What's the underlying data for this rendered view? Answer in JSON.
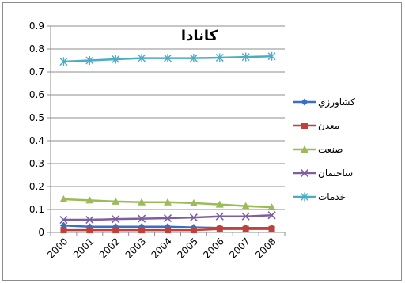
{
  "chart_data": {
    "type": "line",
    "title": "کانادا",
    "categories": [
      "2000",
      "2001",
      "2002",
      "2003",
      "2004",
      "2005",
      "2006",
      "2007",
      "2008"
    ],
    "ylim": [
      0,
      0.9
    ],
    "yticks": [
      "0",
      "0.1",
      "0.2",
      "0.3",
      "0.4",
      "0.5",
      "0.6",
      "0.7",
      "0.8",
      "0.9"
    ],
    "grid": true,
    "legend_position": "right",
    "series": [
      {
        "name": "كشاورزي",
        "color": "#3a6fc4",
        "marker": "diamond",
        "values": [
          0.03,
          0.025,
          0.025,
          0.025,
          0.025,
          0.022,
          0.02,
          0.02,
          0.02
        ]
      },
      {
        "name": "معدن",
        "color": "#c0413b",
        "marker": "square",
        "values": [
          0.01,
          0.01,
          0.01,
          0.01,
          0.01,
          0.01,
          0.015,
          0.015,
          0.015
        ]
      },
      {
        "name": "صنعت",
        "color": "#9bbb59",
        "marker": "triangle",
        "values": [
          0.145,
          0.14,
          0.135,
          0.132,
          0.132,
          0.128,
          0.122,
          0.115,
          0.11
        ]
      },
      {
        "name": "ساختمان",
        "color": "#7d5fa0",
        "marker": "x",
        "values": [
          0.055,
          0.055,
          0.058,
          0.06,
          0.062,
          0.065,
          0.07,
          0.07,
          0.075
        ]
      },
      {
        "name": "خدمات",
        "color": "#4bacc6",
        "marker": "asterisk",
        "values": [
          0.745,
          0.75,
          0.755,
          0.76,
          0.76,
          0.76,
          0.762,
          0.765,
          0.768
        ]
      }
    ]
  }
}
